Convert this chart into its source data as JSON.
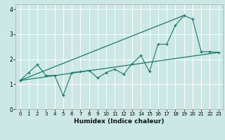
{
  "title": "",
  "xlabel": "Humidex (Indice chaleur)",
  "xlim": [
    -0.5,
    23.5
  ],
  "ylim": [
    0,
    4.2
  ],
  "xticks": [
    0,
    1,
    2,
    3,
    4,
    5,
    6,
    7,
    8,
    9,
    10,
    11,
    12,
    13,
    14,
    15,
    16,
    17,
    18,
    19,
    20,
    21,
    22,
    23
  ],
  "yticks": [
    0,
    1,
    2,
    3,
    4
  ],
  "bg_color": "#cce8e4",
  "grid_color": "#ffffff",
  "line_color": "#1a7a6e",
  "line1_x": [
    0,
    1,
    2,
    3,
    4,
    5,
    6,
    7,
    8,
    9,
    10,
    11,
    12,
    13,
    14,
    15,
    16,
    17,
    18,
    19,
    20,
    21,
    22,
    23
  ],
  "line1_y": [
    1.15,
    1.47,
    1.78,
    1.35,
    1.35,
    0.55,
    1.47,
    1.5,
    1.55,
    1.25,
    1.47,
    1.6,
    1.4,
    1.82,
    2.15,
    1.5,
    2.6,
    2.6,
    3.35,
    3.75,
    3.6,
    2.3,
    2.3,
    2.27
  ],
  "line2_x": [
    0,
    23
  ],
  "line2_y": [
    1.15,
    2.27
  ],
  "line3_x": [
    0,
    19
  ],
  "line3_y": [
    1.15,
    3.75
  ],
  "tick_fontsize": 5.0,
  "xlabel_fontsize": 6.5
}
